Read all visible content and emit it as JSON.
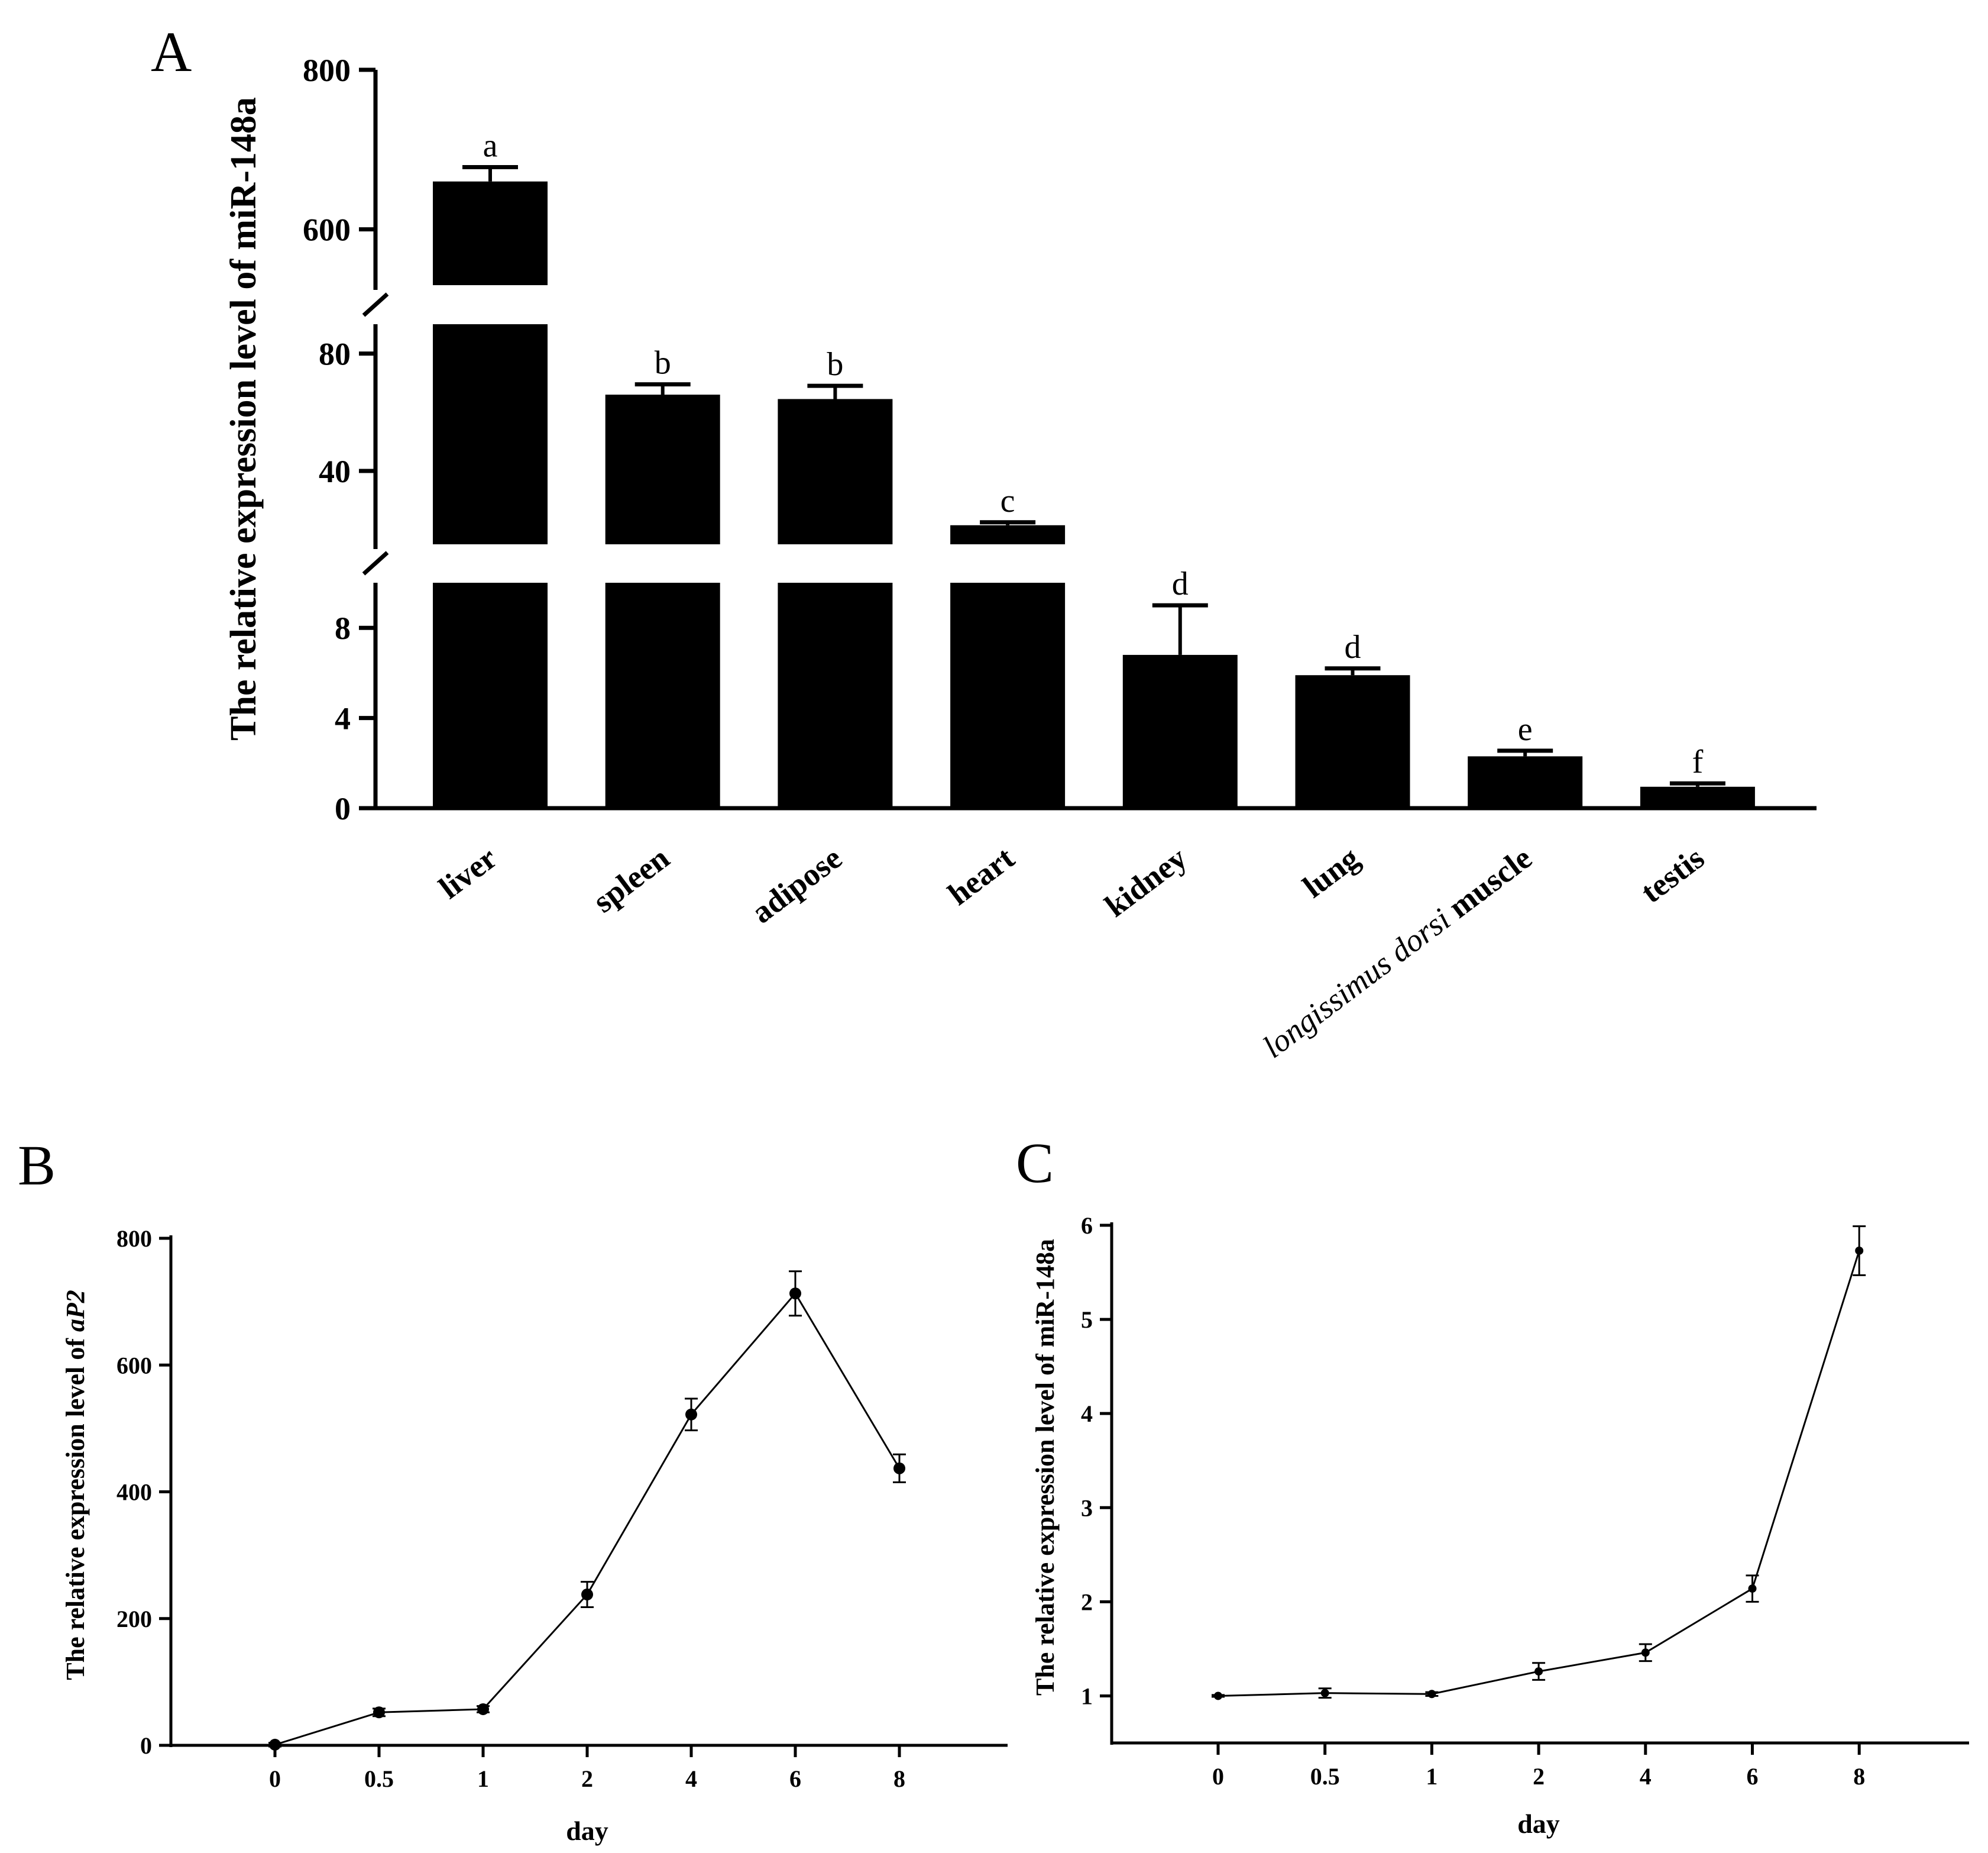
{
  "chart_data": [
    {
      "panel": "A",
      "type": "bar",
      "ylabel": "The relative expression level of miR-148a",
      "categories": [
        "liver",
        "spleen",
        "adipose",
        "heart",
        "kidney",
        "lung",
        "muscle",
        "testis"
      ],
      "category_prefix_italic": {
        "muscle": "longissimus dorsi"
      },
      "values": [
        660,
        66,
        64.5,
        21.5,
        6.8,
        5.9,
        2.3,
        0.95
      ],
      "error_upper": [
        678,
        69.5,
        69,
        22.5,
        9.0,
        6.2,
        2.55,
        1.1
      ],
      "significance_letters": [
        "a",
        "b",
        "b",
        "c",
        "d",
        "d",
        "e",
        "f"
      ],
      "y_axis_segments": [
        {
          "range": [
            0,
            10
          ],
          "ticks": [
            "0",
            "4",
            "8"
          ]
        },
        {
          "range": [
            15,
            90
          ],
          "ticks": [
            "40",
            "80"
          ]
        },
        {
          "range": [
            530,
            800
          ],
          "ticks": [
            "600",
            "800"
          ]
        }
      ]
    },
    {
      "panel": "B",
      "type": "line",
      "ylabel_prefix": "The relative expression level of ",
      "ylabel_italic": "aP2",
      "xlabel": "day",
      "x": [
        "0",
        "0.5",
        "1",
        "2",
        "4",
        "6",
        "8"
      ],
      "values": [
        1,
        52,
        57,
        238,
        522,
        713,
        437
      ],
      "error": [
        3,
        6,
        5,
        20,
        25,
        35,
        22
      ],
      "ylim": [
        0,
        800
      ],
      "yticks": [
        "0",
        "200",
        "400",
        "600",
        "800"
      ]
    },
    {
      "panel": "C",
      "type": "line",
      "ylabel": "The relative expression level of miR-148a",
      "xlabel": "day",
      "x": [
        "0",
        "0.5",
        "1",
        "2",
        "4",
        "6",
        "8"
      ],
      "values": [
        1.0,
        1.03,
        1.02,
        1.26,
        1.46,
        2.14,
        5.73
      ],
      "error": [
        0.01,
        0.05,
        0.02,
        0.09,
        0.09,
        0.14,
        0.26
      ],
      "ylim": [
        0.5,
        6
      ],
      "yticks": [
        "1",
        "2",
        "3",
        "4",
        "5",
        "6"
      ]
    }
  ]
}
